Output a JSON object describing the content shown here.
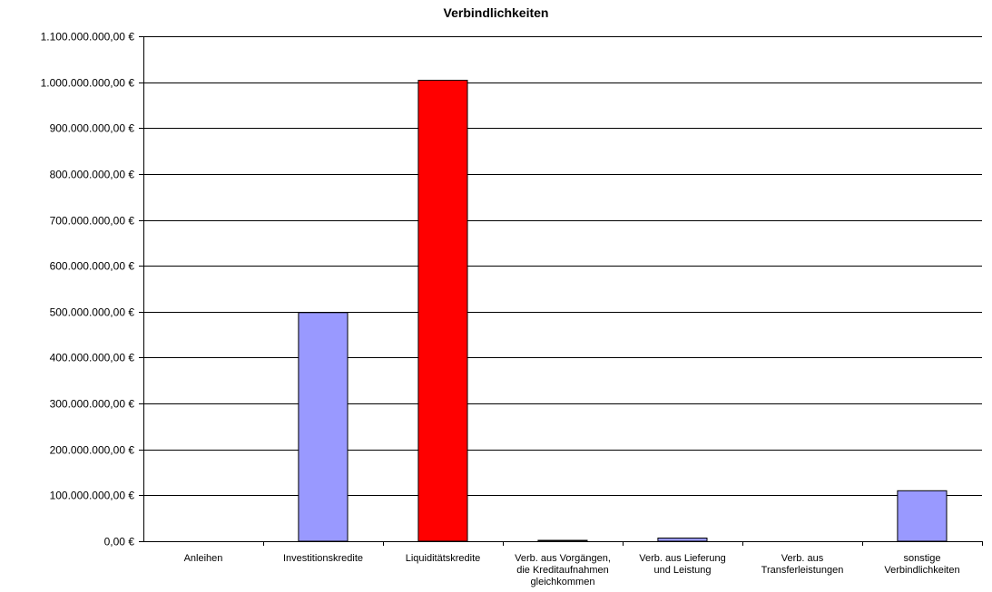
{
  "chart_data": {
    "type": "bar",
    "title": "Verbindlichkeiten",
    "xlabel": "",
    "ylabel": "",
    "categories": [
      [
        "Anleihen"
      ],
      [
        "Investitionskredite"
      ],
      [
        "Liquiditätskredite"
      ],
      [
        "Verb. aus Vorgängen,",
        "die Kreditaufnahmen",
        "gleichkommen"
      ],
      [
        "Verb. aus Lieferung",
        "und Leistung"
      ],
      [
        "Verb. aus",
        "Transferleistungen"
      ],
      [
        "sonstige",
        "Verbindlichkeiten"
      ]
    ],
    "values": [
      0,
      498000000,
      1004000000,
      2000000,
      7000000,
      0,
      110000000
    ],
    "bar_colors": [
      "#9999ff",
      "#9999ff",
      "#ff0000",
      "#9999ff",
      "#9999ff",
      "#9999ff",
      "#9999ff"
    ],
    "ylim": [
      0,
      1100000000
    ],
    "ytick_step": 100000000,
    "ytick_labels": [
      "0,00 €",
      "100.000.000,00 €",
      "200.000.000,00 €",
      "300.000.000,00 €",
      "400.000.000,00 €",
      "500.000.000,00 €",
      "600.000.000,00 €",
      "700.000.000,00 €",
      "800.000.000,00 €",
      "900.000.000,00 €",
      "1.000.000.000,00 €",
      "1.100.000.000,00 €"
    ],
    "grid": true,
    "legend": "none"
  }
}
